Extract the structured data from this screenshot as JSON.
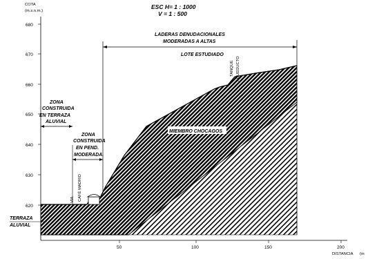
{
  "axes": {
    "y_title": "COTA",
    "y_unit": "(m.s.n.m.)",
    "x_title": "DISTANCIA",
    "x_unit": "(m",
    "y_ticks": [
      "680",
      "670",
      "660",
      "650",
      "640",
      "630",
      "620"
    ],
    "x_ticks": [
      "50",
      "100",
      "150",
      "200"
    ]
  },
  "scale": {
    "horizontal": "ESC H= 1 : 1000",
    "vertical": "V = 1 : 500"
  },
  "zones": {
    "laderas_line1": "LADERAS DENUDACIONALES",
    "laderas_line2": "MODERADAS A ALTAS",
    "lote": "LOTE ESTUDIADO",
    "terraza_line1": "ZONA",
    "terraza_line2": "CONSTRUIDA",
    "terraza_line3": "EN TERRAZA",
    "terraza_line4": "ALUVIAL",
    "pend_line1": "ZONA",
    "pend_line2": "CONSTRUIDA",
    "pend_line3": "EN PEND.",
    "pend_line4": "MODERADA.",
    "aluvial_line1": "TERRAZA",
    "aluvial_line2": "ALUVIAL"
  },
  "features": {
    "via": "VÍA",
    "cafe_madrid": "CAFÉ MADRID",
    "tanque_line1": "TANQUE",
    "tanque_line2": "ACUEDUCTO",
    "miembro": "MIEMBRO CHOCAGOS"
  },
  "colors": {
    "ink": "#000000",
    "background": "#ffffff"
  }
}
